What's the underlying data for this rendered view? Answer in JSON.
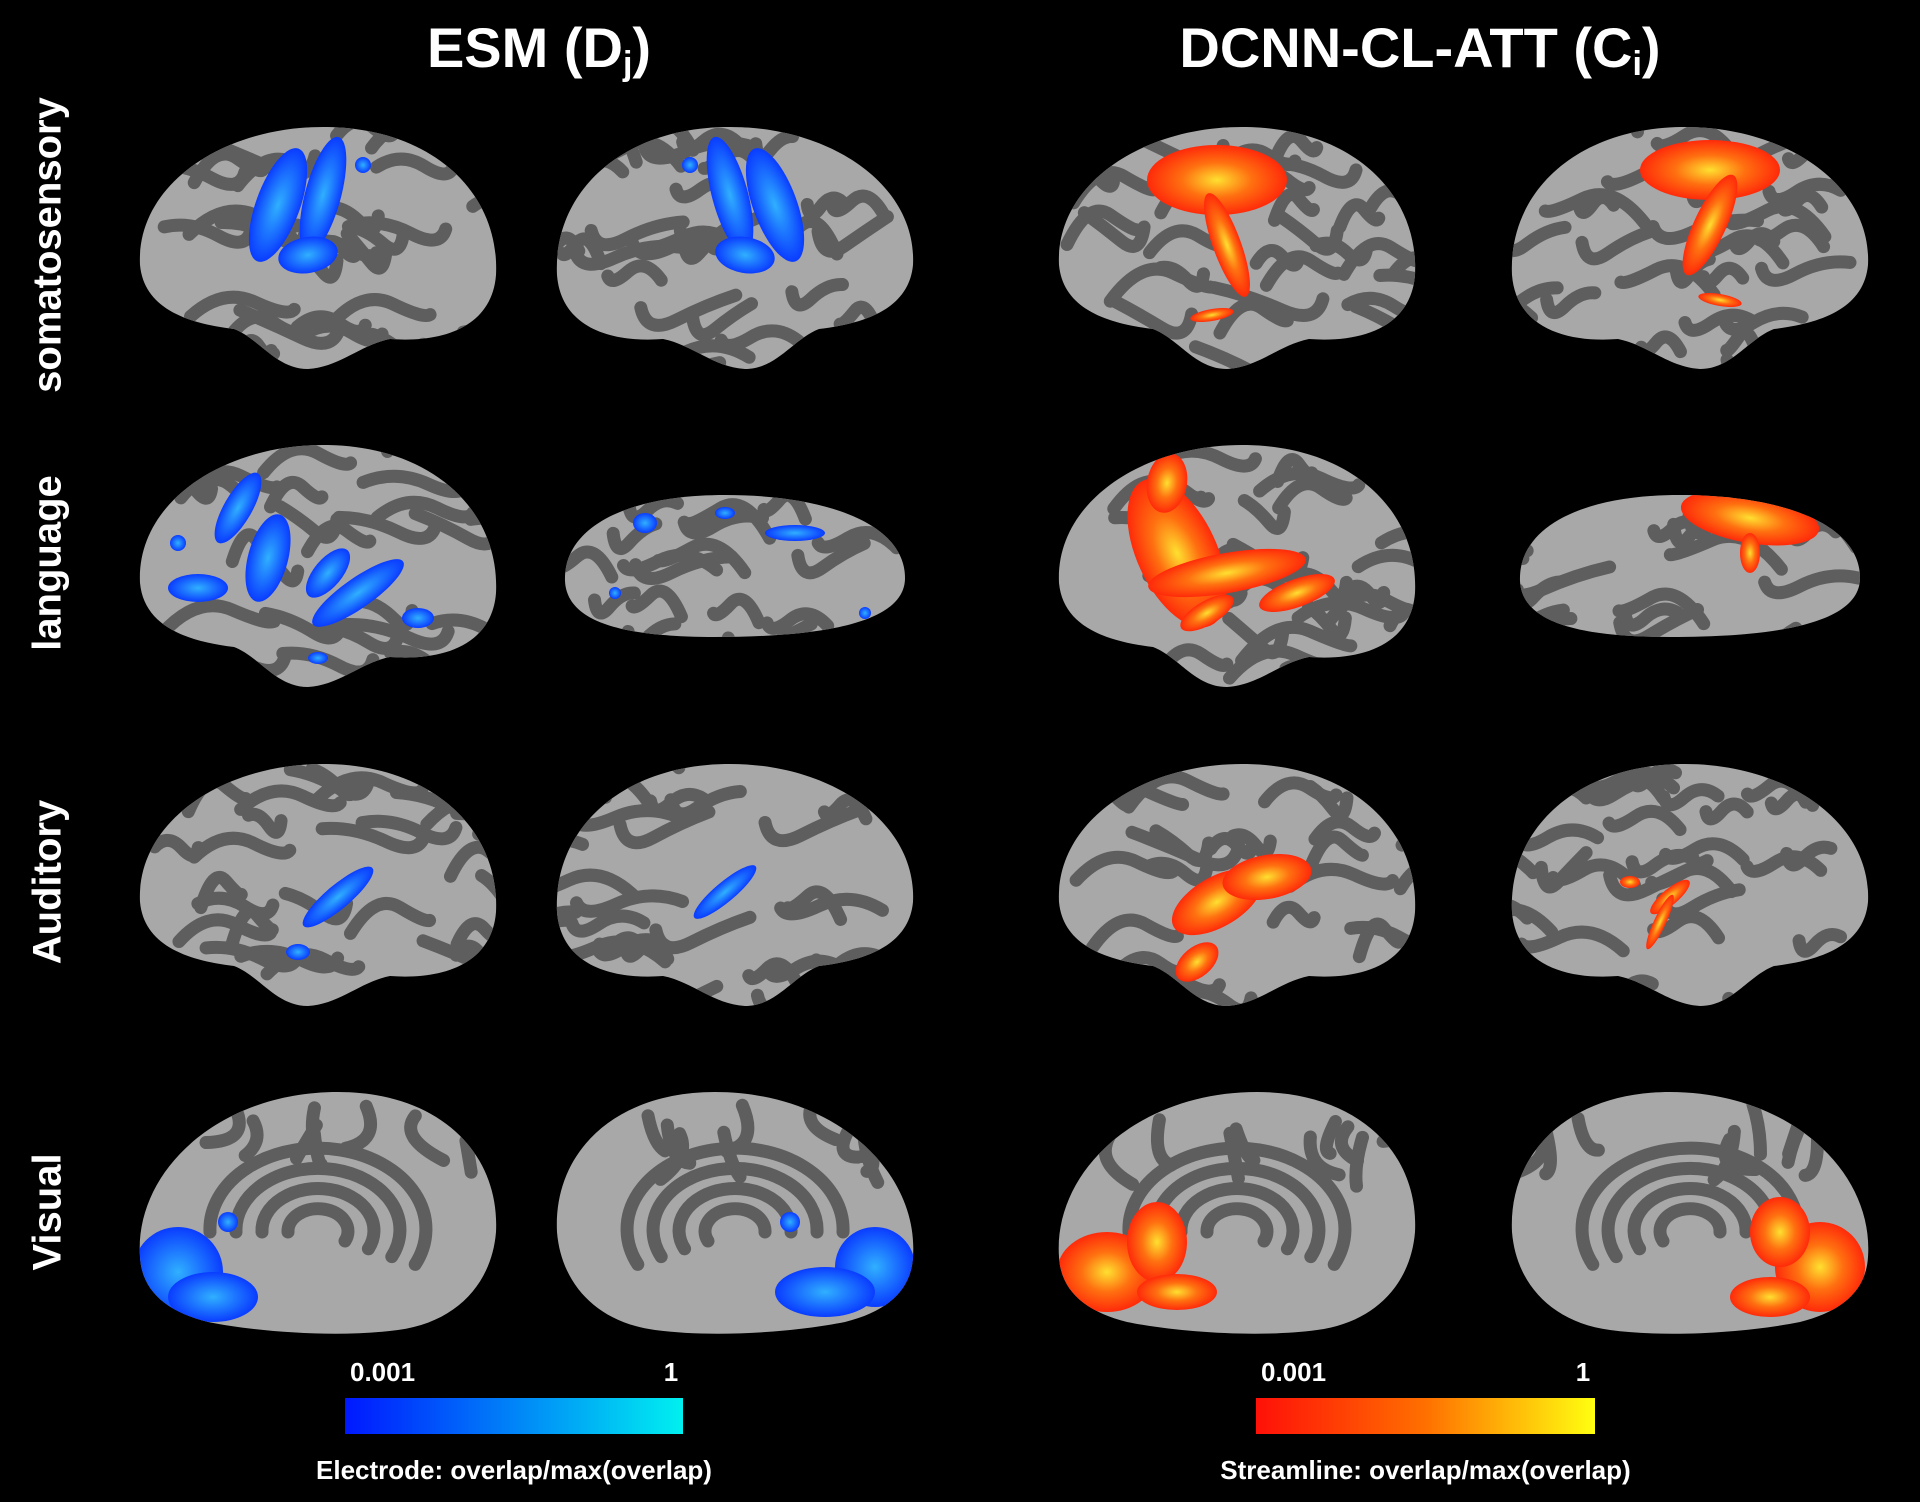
{
  "titles": [
    {
      "main": "ESM (D",
      "sub": "j",
      "close": ")"
    },
    {
      "main": "DCNN-CL-ATT (C",
      "sub": "i",
      "close": ")"
    }
  ],
  "rows": [
    "somatosensory",
    "language",
    "Auditory",
    "Visual"
  ],
  "colorbars": [
    {
      "min": "0.001",
      "max": "1",
      "caption": "Electrode: overlap/max(overlap)"
    },
    {
      "min": "0.001",
      "max": "1",
      "caption": "Streamline: overlap/max(overlap)"
    }
  ]
}
